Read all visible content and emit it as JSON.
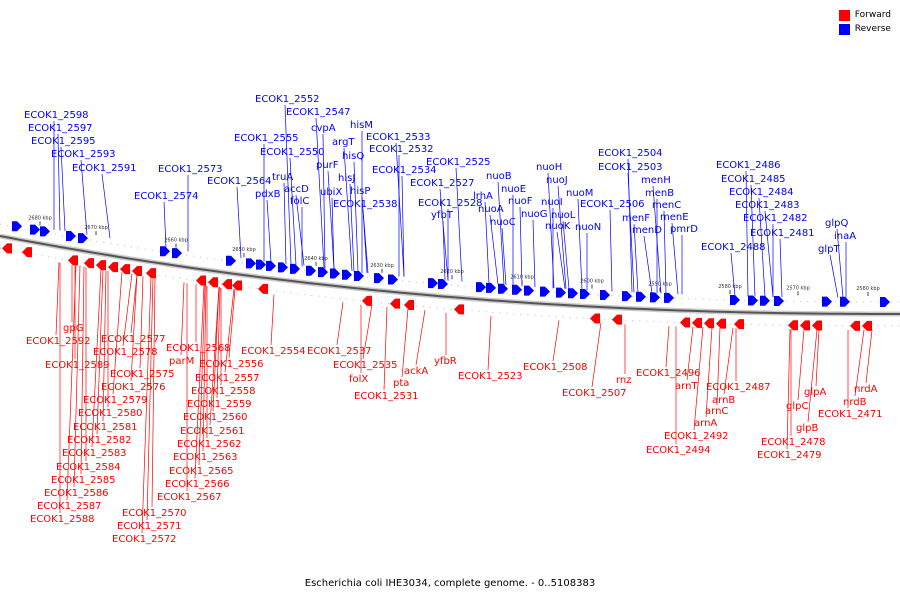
{
  "caption": "Escherichia coli IHE3034, complete genome. - 0..5108383",
  "legend": [
    {
      "label": "Forward",
      "color": "#ff0000"
    },
    {
      "label": "Reverse",
      "color": "#0000ff"
    }
  ],
  "colors": {
    "forward": "#ff0000",
    "reverse": "#0000ff",
    "axis": "#555555"
  },
  "scale_ticks": [
    "2680 kbp",
    "2670 kbp",
    "2660 kbp",
    "2650 kbp",
    "2640 kbp",
    "2630 kbp",
    "2620 kbp",
    "2610 kbp",
    "2600 kbp",
    "2590 kbp",
    "2580 kbp",
    "2570 kbp",
    "2560 kbp"
  ],
  "reverse_labels": [
    "ECOK1_2598",
    "ECOK1_2597",
    "ECOK1_2595",
    "ECOK1_2593",
    "ECOK1_2591",
    "ECOK1_2573",
    "ECOK1_2574",
    "ECOK1_2564",
    "ECOK1_2552",
    "ECOK1_2547",
    "ECOK1_2555",
    "cvpA",
    "pdxB",
    "ECOK1_2550",
    "argT",
    "hisM",
    "truA",
    "hisQ",
    "purF",
    "accD",
    "folC",
    "ubiX",
    "hisJ",
    "hisP",
    "ECOK1_2533",
    "ECOK1_2532",
    "ECOK1_2534",
    "ECOK1_2538",
    "ECOK1_2525",
    "ECOK1_2527",
    "ECOK1_2528",
    "yfbT",
    "lrhA",
    "nuoB",
    "nuoA",
    "nuoE",
    "nuoF",
    "nuoC",
    "nuoH",
    "nuoJ",
    "nuoI",
    "nuoG",
    "nuoM",
    "nuoL",
    "nuoK",
    "nuoN",
    "ECOK1_2506",
    "ECOK1_2504",
    "ECOK1_2503",
    "menH",
    "menB",
    "menC",
    "menF",
    "menE",
    "menD",
    "pmrD",
    "ECOK1_2486",
    "ECOK1_2485",
    "ECOK1_2484",
    "ECOK1_2483",
    "ECOK1_2482",
    "ECOK1_2481",
    "ECOK1_2488",
    "glpQ",
    "glpT",
    "inaA"
  ],
  "forward_labels": [
    "gpG",
    "ECOK1_2592",
    "ECOK1_2577",
    "ECOK1_2578",
    "ECOK1_2589",
    "ECOK1_2575",
    "ECOK1_2576",
    "ECOK1_2579",
    "ECOK1_2580",
    "ECOK1_2581",
    "ECOK1_2582",
    "ECOK1_2583",
    "ECOK1_2584",
    "ECOK1_2585",
    "ECOK1_2586",
    "ECOK1_2587",
    "ECOK1_2588",
    "ECOK1_2570",
    "ECOK1_2571",
    "ECOK1_2572",
    "ECOK1_2568",
    "parM",
    "ECOK1_2556",
    "ECOK1_2557",
    "ECOK1_2558",
    "ECOK1_2559",
    "ECOK1_2560",
    "ECOK1_2561",
    "ECOK1_2562",
    "ECOK1_2563",
    "ECOK1_2565",
    "ECOK1_2566",
    "ECOK1_2567",
    "ECOK1_2554",
    "ECOK1_2537",
    "ECOK1_2535",
    "folX",
    "ECOK1_2531",
    "pta",
    "ackA",
    "yfbR",
    "ECOK1_2523",
    "ECOK1_2508",
    "ECOK1_2507",
    "rnz",
    "ECOK1_2496",
    "arnT",
    "arnB",
    "ECOK1_2487",
    "arnC",
    "arnA",
    "ECOK1_2492",
    "ECOK1_2494",
    "glpA",
    "glpC",
    "glpB",
    "ECOK1_2478",
    "ECOK1_2479",
    "nrdA",
    "nrdB",
    "ECOK1_2471"
  ]
}
